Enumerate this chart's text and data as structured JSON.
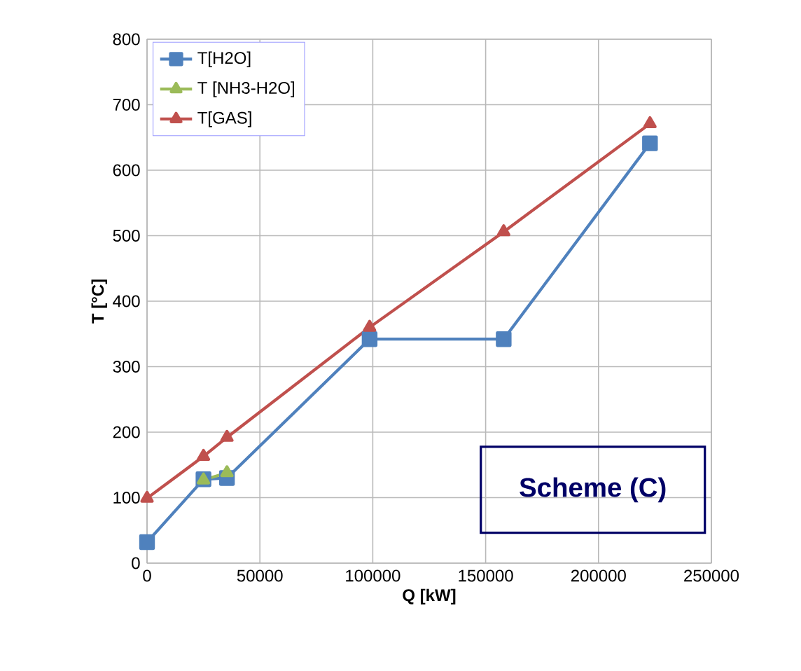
{
  "chart_data": {
    "type": "line",
    "xlabel": "Q [kW]",
    "ylabel": "T [°C]",
    "xlim": [
      0,
      250000
    ],
    "xticks": [
      0,
      50000,
      100000,
      150000,
      200000,
      250000
    ],
    "ylim": [
      0,
      800
    ],
    "yticks": [
      0,
      100,
      200,
      300,
      400,
      500,
      600,
      700,
      800
    ],
    "grid": true,
    "legend": "top left",
    "line_style": "solid",
    "annotations": [
      "Scheme (C)"
    ],
    "series": [
      {
        "name": "T[H2O]",
        "color": "#4f81bd",
        "marker": "square",
        "x": [
          0,
          25000,
          35400,
          98600,
          158000,
          222800
        ],
        "values": [
          32,
          128,
          130,
          342,
          342,
          641
        ]
      },
      {
        "name": "T [NH3-H2O]",
        "color": "#9bbb59",
        "marker": "triangle",
        "x": [
          25000,
          35400
        ],
        "values": [
          127,
          138
        ]
      },
      {
        "name": "T[GAS]",
        "color": "#c0504d",
        "marker": "triangle",
        "x": [
          0,
          25000,
          35400,
          98600,
          158000,
          222800
        ],
        "values": [
          99,
          163,
          192,
          360,
          506,
          671
        ]
      }
    ]
  }
}
